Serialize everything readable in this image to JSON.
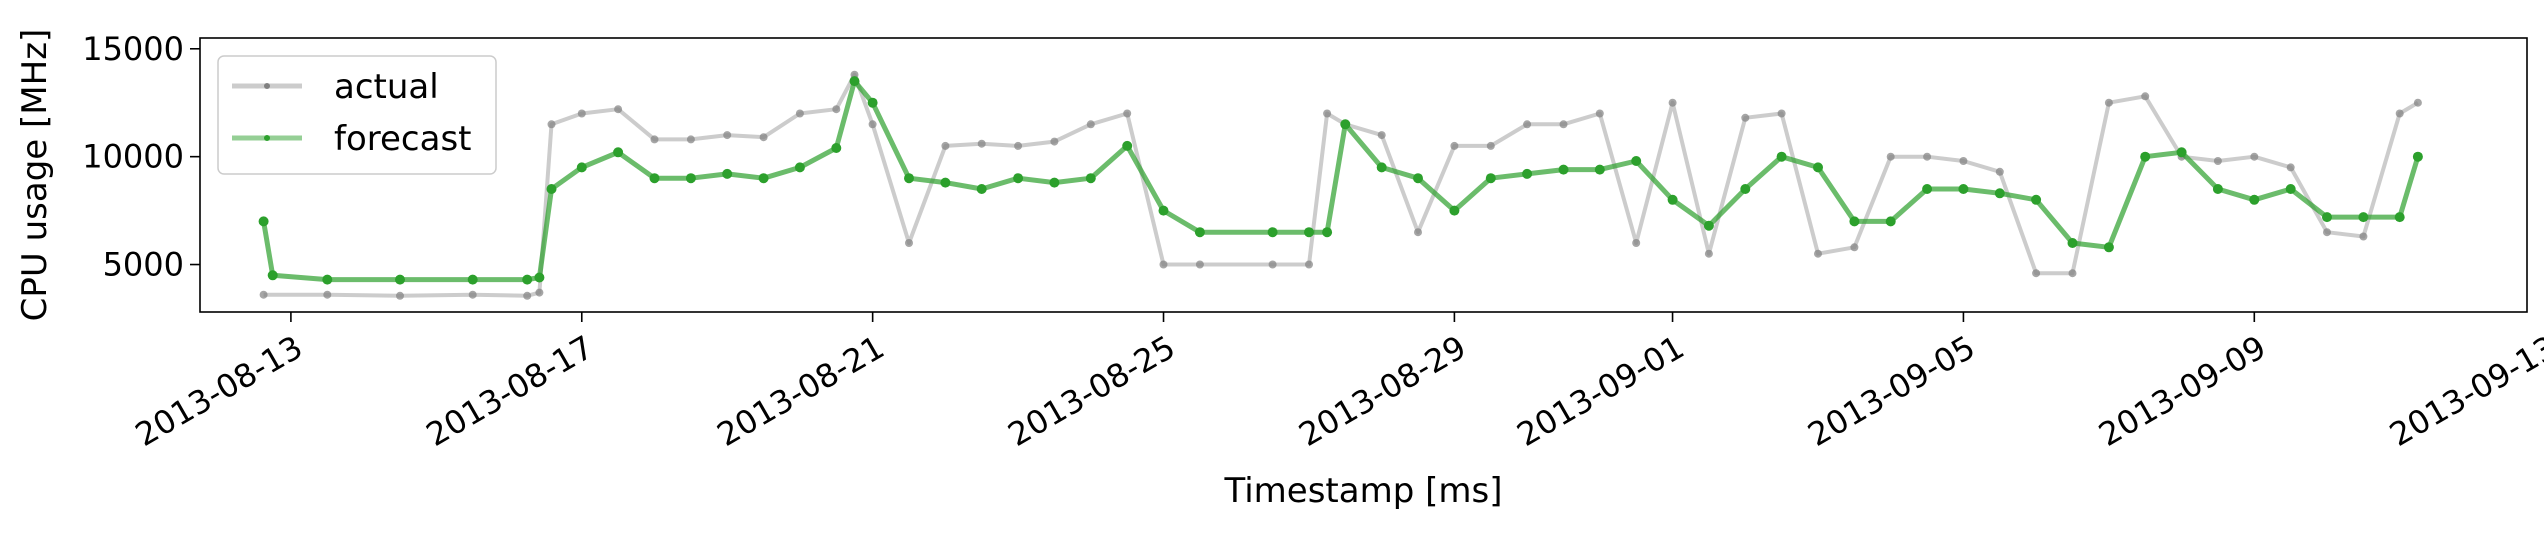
{
  "chart_data": {
    "type": "line",
    "title": "",
    "xlabel": "Timestamp [ms]",
    "ylabel": "CPU usage [MHz]",
    "xlim": [
      "2013-08-11T18:00",
      "2013-09-12T18:00"
    ],
    "ylim": [
      2800,
      15500
    ],
    "x_ticks": [
      "2013-08-13",
      "2013-08-17",
      "2013-08-21",
      "2013-08-25",
      "2013-08-29",
      "2013-09-01",
      "2013-09-05",
      "2013-09-09",
      "2013-09-13"
    ],
    "y_ticks": [
      5000,
      10000,
      15000
    ],
    "y_tick_labels": [
      "5000",
      "10000",
      "15000"
    ],
    "legend": {
      "position": "top-left",
      "entries": [
        "actual",
        "forecast"
      ]
    },
    "grid": false,
    "colors": {
      "actual": "#808080",
      "forecast": "#2ca02c"
    },
    "series": [
      {
        "name": "actual",
        "x": [
          "2013-08-12T15:00",
          "2013-08-13T12:00",
          "2013-08-14T12:00",
          "2013-08-15T12:00",
          "2013-08-16T06:00",
          "2013-08-16T10:00",
          "2013-08-16T14:00",
          "2013-08-17T00:00",
          "2013-08-17T12:00",
          "2013-08-18T00:00",
          "2013-08-18T12:00",
          "2013-08-19T00:00",
          "2013-08-19T12:00",
          "2013-08-20T00:00",
          "2013-08-20T12:00",
          "2013-08-20T18:00",
          "2013-08-21T00:00",
          "2013-08-21T12:00",
          "2013-08-22T00:00",
          "2013-08-22T12:00",
          "2013-08-23T00:00",
          "2013-08-23T12:00",
          "2013-08-24T00:00",
          "2013-08-24T12:00",
          "2013-08-25T00:00",
          "2013-08-25T12:00",
          "2013-08-26T12:00",
          "2013-08-27T00:00",
          "2013-08-27T06:00",
          "2013-08-27T12:00",
          "2013-08-28T00:00",
          "2013-08-28T12:00",
          "2013-08-29T00:00",
          "2013-08-29T12:00",
          "2013-08-30T00:00",
          "2013-08-30T12:00",
          "2013-08-31T00:00",
          "2013-08-31T12:00",
          "2013-09-01T00:00",
          "2013-09-01T12:00",
          "2013-09-02T00:00",
          "2013-09-02T12:00",
          "2013-09-03T00:00",
          "2013-09-03T12:00",
          "2013-09-04T00:00",
          "2013-09-04T12:00",
          "2013-09-05T00:00",
          "2013-09-05T12:00",
          "2013-09-06T00:00",
          "2013-09-06T12:00",
          "2013-09-07T00:00",
          "2013-09-07T12:00",
          "2013-09-08T00:00",
          "2013-09-08T12:00",
          "2013-09-09T00:00",
          "2013-09-09T12:00",
          "2013-09-10T00:00",
          "2013-09-10T12:00",
          "2013-09-11T00:00",
          "2013-09-11T06:00"
        ],
        "y": [
          3600,
          3600,
          3550,
          3600,
          3550,
          3700,
          11500,
          12000,
          12200,
          10800,
          10800,
          11000,
          10900,
          12000,
          12200,
          13800,
          11500,
          6000,
          10500,
          10600,
          10500,
          10700,
          11500,
          12000,
          5000,
          5000,
          5000,
          5000,
          12000,
          11500,
          11000,
          6500,
          10500,
          10500,
          11500,
          11500,
          12000,
          6000,
          12500,
          5500,
          11800,
          12000,
          5500,
          5800,
          10000,
          10000,
          9800,
          9300,
          4600,
          4600,
          12500,
          12800,
          10000,
          9800,
          10000,
          9500,
          6500,
          6300,
          12000,
          12500
        ]
      },
      {
        "name": "forecast",
        "x": [
          "2013-08-12T15:00",
          "2013-08-12T18:00",
          "2013-08-13T12:00",
          "2013-08-14T12:00",
          "2013-08-15T12:00",
          "2013-08-16T06:00",
          "2013-08-16T10:00",
          "2013-08-16T14:00",
          "2013-08-17T00:00",
          "2013-08-17T12:00",
          "2013-08-18T00:00",
          "2013-08-18T12:00",
          "2013-08-19T00:00",
          "2013-08-19T12:00",
          "2013-08-20T00:00",
          "2013-08-20T12:00",
          "2013-08-20T18:00",
          "2013-08-21T00:00",
          "2013-08-21T12:00",
          "2013-08-22T00:00",
          "2013-08-22T12:00",
          "2013-08-23T00:00",
          "2013-08-23T12:00",
          "2013-08-24T00:00",
          "2013-08-24T12:00",
          "2013-08-25T00:00",
          "2013-08-25T12:00",
          "2013-08-26T12:00",
          "2013-08-27T00:00",
          "2013-08-27T06:00",
          "2013-08-27T12:00",
          "2013-08-28T00:00",
          "2013-08-28T12:00",
          "2013-08-29T00:00",
          "2013-08-29T12:00",
          "2013-08-30T00:00",
          "2013-08-30T12:00",
          "2013-08-31T00:00",
          "2013-08-31T12:00",
          "2013-09-01T00:00",
          "2013-09-01T12:00",
          "2013-09-02T00:00",
          "2013-09-02T12:00",
          "2013-09-03T00:00",
          "2013-09-03T12:00",
          "2013-09-04T00:00",
          "2013-09-04T12:00",
          "2013-09-05T00:00",
          "2013-09-05T12:00",
          "2013-09-06T00:00",
          "2013-09-06T12:00",
          "2013-09-07T00:00",
          "2013-09-07T12:00",
          "2013-09-08T00:00",
          "2013-09-08T12:00",
          "2013-09-09T00:00",
          "2013-09-09T12:00",
          "2013-09-10T00:00",
          "2013-09-10T12:00",
          "2013-09-11T00:00",
          "2013-09-11T06:00"
        ],
        "y": [
          7000,
          4500,
          4300,
          4300,
          4300,
          4300,
          4400,
          8500,
          9500,
          10200,
          9000,
          9000,
          9200,
          9000,
          9500,
          10400,
          13500,
          12500,
          9000,
          8800,
          8500,
          9000,
          8800,
          9000,
          10500,
          7500,
          6500,
          6500,
          6500,
          6500,
          11500,
          9500,
          9000,
          7500,
          9000,
          9200,
          9400,
          9400,
          9800,
          8000,
          6800,
          8500,
          10000,
          9500,
          7000,
          7000,
          8500,
          8500,
          8300,
          8000,
          6000,
          5800,
          10000,
          10200,
          8500,
          8000,
          8500,
          7200,
          7200,
          7200,
          10000
        ]
      }
    ]
  }
}
